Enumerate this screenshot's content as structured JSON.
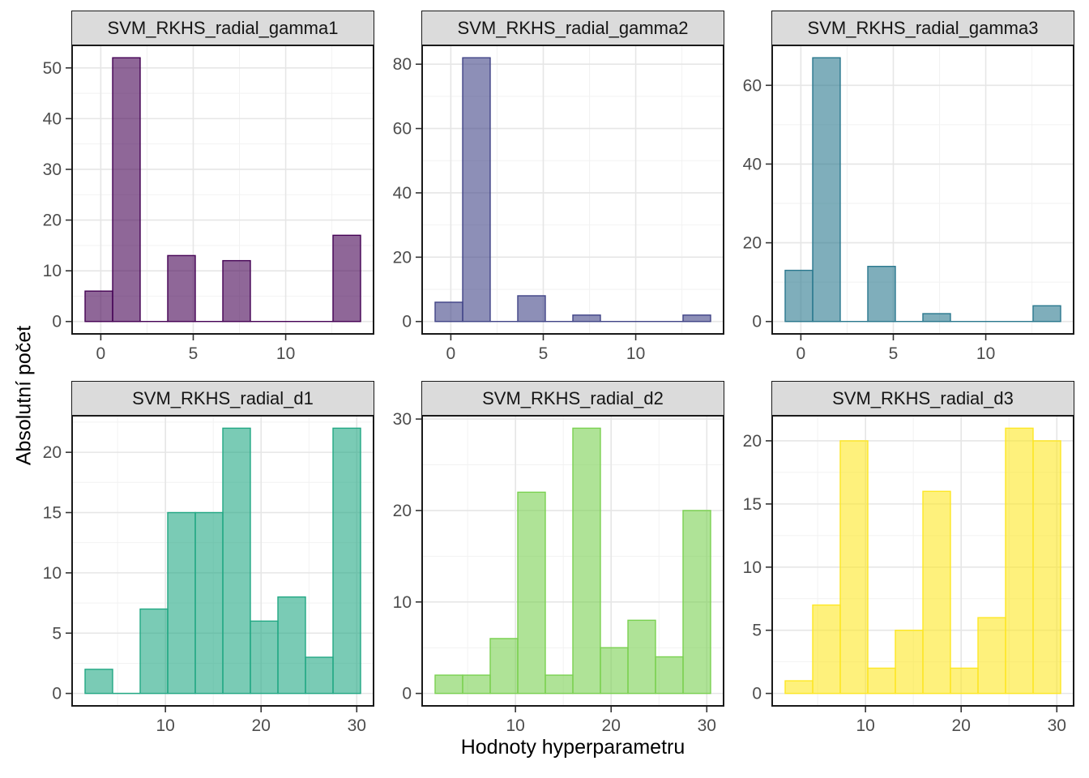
{
  "figure": {
    "ylabel": "Absolutní počet",
    "xlabel": "Hodnoty hyperparametru",
    "background": "#FFFFFF",
    "panel_border_color": "#1A1A1A",
    "strip_background": "#DBDBDB",
    "strip_text_color": "#151515",
    "grid_major_color": "#E6E6E6",
    "grid_minor_color": "#F2F2F2",
    "tick_mark_color": "#333333",
    "tick_label_color": "#4D4D4D",
    "axis_title_color": "#000000"
  },
  "chart_data": [
    {
      "type": "bar",
      "subtype": "histogram",
      "title": "SVM_RKHS_radial_gamma1",
      "row": 0,
      "col": 0,
      "fill": "rgba(68,1,84,0.6)",
      "stroke": "#440154",
      "x_ticks": [
        0,
        5,
        10
      ],
      "y_ticks": [
        0,
        10,
        20,
        30,
        40,
        50
      ],
      "bin_edges": [
        -0.85,
        0.64,
        2.13,
        3.62,
        5.11,
        6.6,
        8.09,
        9.58,
        11.07,
        12.56,
        14.05
      ],
      "counts": [
        6,
        52,
        0,
        13,
        0,
        12,
        0,
        0,
        0,
        17
      ]
    },
    {
      "type": "bar",
      "subtype": "histogram",
      "title": "SVM_RKHS_radial_gamma2",
      "row": 0,
      "col": 1,
      "fill": "rgba(65,68,135,0.6)",
      "stroke": "#414487",
      "x_ticks": [
        0,
        5,
        10
      ],
      "y_ticks": [
        0,
        20,
        40,
        60,
        80
      ],
      "bin_edges": [
        -0.85,
        0.64,
        2.13,
        3.62,
        5.11,
        6.6,
        8.09,
        9.58,
        11.07,
        12.56,
        14.05
      ],
      "counts": [
        6,
        82,
        0,
        8,
        0,
        2,
        0,
        0,
        0,
        2
      ]
    },
    {
      "type": "bar",
      "subtype": "histogram",
      "title": "SVM_RKHS_radial_gamma3",
      "row": 0,
      "col": 2,
      "fill": "rgba(42,120,142,0.6)",
      "stroke": "#2A788E",
      "x_ticks": [
        0,
        5,
        10
      ],
      "y_ticks": [
        0,
        20,
        40,
        60
      ],
      "bin_edges": [
        -0.85,
        0.64,
        2.13,
        3.62,
        5.11,
        6.6,
        8.09,
        9.58,
        11.07,
        12.56,
        14.05
      ],
      "counts": [
        13,
        67,
        0,
        14,
        0,
        2,
        0,
        0,
        0,
        4
      ]
    },
    {
      "type": "bar",
      "subtype": "histogram",
      "title": "SVM_RKHS_radial_d1",
      "row": 1,
      "col": 0,
      "fill": "rgba(34,168,132,0.6)",
      "stroke": "#22A884",
      "x_ticks": [
        10,
        20,
        30
      ],
      "y_ticks": [
        0,
        5,
        10,
        15,
        20
      ],
      "bin_edges": [
        1.6,
        4.48,
        7.36,
        10.24,
        13.12,
        16.0,
        18.88,
        21.76,
        24.64,
        27.52,
        30.4
      ],
      "counts": [
        2,
        0,
        7,
        15,
        15,
        22,
        6,
        8,
        3,
        22
      ]
    },
    {
      "type": "bar",
      "subtype": "histogram",
      "title": "SVM_RKHS_radial_d2",
      "row": 1,
      "col": 1,
      "fill": "rgba(122,209,81,0.6)",
      "stroke": "#7AD151",
      "x_ticks": [
        10,
        20,
        30
      ],
      "y_ticks": [
        0,
        10,
        20,
        30
      ],
      "bin_edges": [
        1.6,
        4.48,
        7.36,
        10.24,
        13.12,
        16.0,
        18.88,
        21.76,
        24.64,
        27.52,
        30.4
      ],
      "counts": [
        2,
        2,
        6,
        22,
        2,
        29,
        5,
        8,
        4,
        20
      ]
    },
    {
      "type": "bar",
      "subtype": "histogram",
      "title": "SVM_RKHS_radial_d3",
      "row": 1,
      "col": 2,
      "fill": "rgba(253,231,37,0.6)",
      "stroke": "#FDE725",
      "x_ticks": [
        10,
        20,
        30
      ],
      "y_ticks": [
        0,
        5,
        10,
        15,
        20
      ],
      "bin_edges": [
        1.6,
        4.48,
        7.36,
        10.24,
        13.12,
        16.0,
        18.88,
        21.76,
        24.64,
        27.52,
        30.4
      ],
      "counts": [
        1,
        7,
        20,
        2,
        5,
        16,
        2,
        6,
        21,
        20
      ]
    }
  ]
}
